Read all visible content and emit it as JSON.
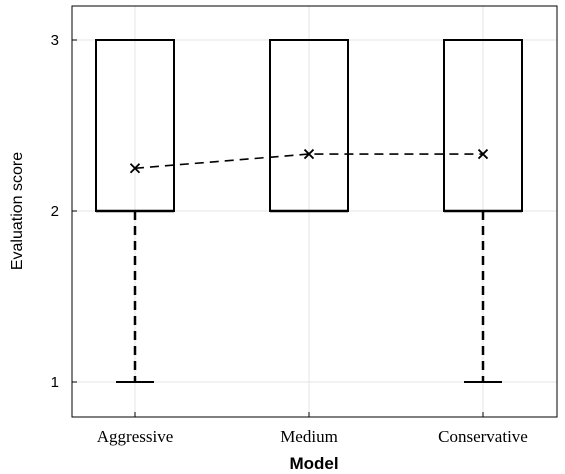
{
  "chart_data": {
    "type": "box",
    "categories": [
      "Aggressive",
      "Medium",
      "Conservative"
    ],
    "boxes": [
      {
        "category": "Aggressive",
        "whisker_low": 1,
        "q1": 2,
        "median": 2,
        "q3": 3,
        "whisker_high": 3,
        "mean": 2.25
      },
      {
        "category": "Medium",
        "whisker_low": 2,
        "q1": 2,
        "median": 2,
        "q3": 3,
        "whisker_high": 3,
        "mean": 2.333
      },
      {
        "category": "Conservative",
        "whisker_low": 1,
        "q1": 2,
        "median": 2,
        "q3": 3,
        "whisker_high": 3,
        "mean": 2.333
      }
    ],
    "mean_line": "dashed",
    "mean_marker": "x",
    "xlabel": "Model",
    "ylabel": "Evaluation score",
    "ylim": [
      0.85,
      3.2
    ],
    "yticks": [
      1,
      2,
      3
    ],
    "grid": true,
    "colors": {
      "box": "#000000",
      "grid": "#e6e6e6"
    }
  }
}
